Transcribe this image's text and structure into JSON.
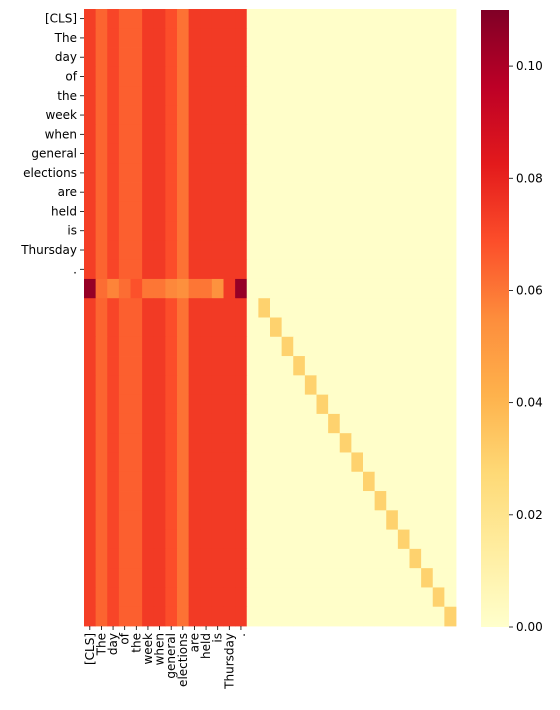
{
  "chart_data": {
    "type": "heatmap",
    "title": "",
    "xlabel": "",
    "ylabel": "",
    "x_tick_labels": [
      "[CLS]",
      "The",
      "day",
      "of",
      "the",
      "week",
      "when",
      "general",
      "elections",
      "are",
      "held",
      "is",
      "Thursday",
      "."
    ],
    "y_tick_labels": [
      "[CLS]",
      "The",
      "day",
      "of",
      "the",
      "week",
      "when",
      "general",
      "elections",
      "are",
      "held",
      "is",
      "Thursday",
      "."
    ],
    "n_rows": 32,
    "n_cols": 32,
    "colormap": "YlOrRd",
    "colorbar": {
      "min": 0.0,
      "max": 0.11,
      "ticks": [
        0.0,
        0.02,
        0.04,
        0.06,
        0.08,
        0.1
      ],
      "tick_labels": [
        "0.00",
        "0.02",
        "0.04",
        "0.06",
        "0.08",
        "0.10"
      ]
    },
    "colors": {
      "low": "#ffffcc",
      "high": "#800026"
    },
    "token_column_weights": [
      0.073,
      0.064,
      0.071,
      0.065,
      0.065,
      0.074,
      0.074,
      0.069,
      0.061,
      0.074,
      0.074,
      0.074,
      0.074,
      0.074
    ],
    "token_rows_count": 14,
    "separator_row": {
      "row_index": 14,
      "values": [
        0.105,
        0.062,
        0.057,
        0.062,
        0.068,
        0.06,
        0.06,
        0.056,
        0.054,
        0.06,
        0.06,
        0.053,
        0.074,
        0.105
      ]
    },
    "padding_column_value": 0.073,
    "background_value": 0.001,
    "diagonal": {
      "start_row": 15,
      "start_col": 15,
      "count": 17,
      "value": 0.03
    }
  }
}
